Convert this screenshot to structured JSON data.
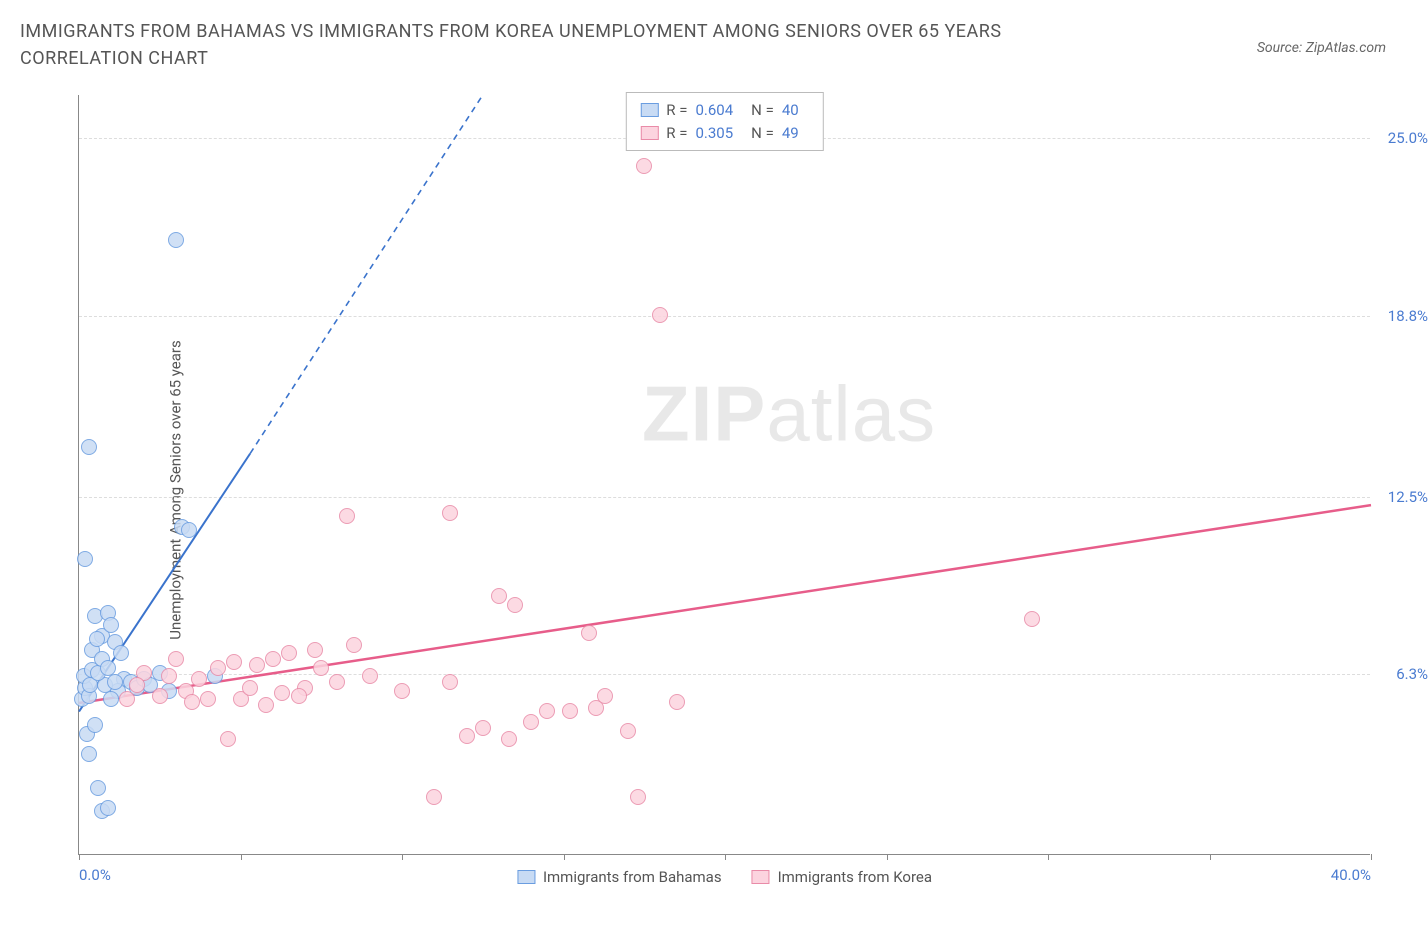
{
  "title": "IMMIGRANTS FROM BAHAMAS VS IMMIGRANTS FROM KOREA UNEMPLOYMENT AMONG SENIORS OVER 65 YEARS CORRELATION CHART",
  "source": "Source: ZipAtlas.com",
  "ylabel": "Unemployment Among Seniors over 65 years",
  "watermark_bold": "ZIP",
  "watermark_light": "atlas",
  "chart": {
    "type": "scatter",
    "xlim": [
      0,
      40
    ],
    "ylim": [
      0,
      26.5
    ],
    "x_ticks": [
      0,
      5,
      10,
      15,
      20,
      25,
      30,
      35,
      40
    ],
    "x_tick_labels": {
      "0": "0.0%",
      "40": "40.0%"
    },
    "y_gridlines": [
      6.3,
      12.5,
      18.8,
      25.0
    ],
    "y_tick_labels": [
      "6.3%",
      "12.5%",
      "18.8%",
      "25.0%"
    ],
    "background_color": "#ffffff",
    "grid_color": "#dddddd",
    "axis_color": "#888888",
    "tick_label_color": "#4a7bd0",
    "point_radius": 8,
    "point_stroke_width": 1.2,
    "series": [
      {
        "name": "Immigrants from Bahamas",
        "fill": "#c8dbf4",
        "stroke": "#6a9de0",
        "R": "0.604",
        "N": "40",
        "trend": {
          "x1": 0,
          "y1": 5.0,
          "x2": 5.3,
          "y2": 14.0,
          "dash_x2": 12.5,
          "dash_y2": 26.5,
          "color": "#3a73cc",
          "width": 2
        },
        "points": [
          [
            0.1,
            5.4
          ],
          [
            0.2,
            5.8
          ],
          [
            0.15,
            6.2
          ],
          [
            0.3,
            5.5
          ],
          [
            0.35,
            5.9
          ],
          [
            0.4,
            6.4
          ],
          [
            0.25,
            4.2
          ],
          [
            0.5,
            4.5
          ],
          [
            0.3,
            3.5
          ],
          [
            0.6,
            2.3
          ],
          [
            0.7,
            1.5
          ],
          [
            0.9,
            1.6
          ],
          [
            0.2,
            10.3
          ],
          [
            0.5,
            8.3
          ],
          [
            0.7,
            7.6
          ],
          [
            0.9,
            8.4
          ],
          [
            1.0,
            8.0
          ],
          [
            1.1,
            7.4
          ],
          [
            1.3,
            7.0
          ],
          [
            1.4,
            6.1
          ],
          [
            1.2,
            5.7
          ],
          [
            1.0,
            5.4
          ],
          [
            0.8,
            5.9
          ],
          [
            0.6,
            6.3
          ],
          [
            1.6,
            6.0
          ],
          [
            1.8,
            5.8
          ],
          [
            2.0,
            6.1
          ],
          [
            2.2,
            5.9
          ],
          [
            2.5,
            6.3
          ],
          [
            2.8,
            5.7
          ],
          [
            4.2,
            6.2
          ],
          [
            3.2,
            11.4
          ],
          [
            3.4,
            11.3
          ],
          [
            3.0,
            21.4
          ],
          [
            0.3,
            14.2
          ],
          [
            0.4,
            7.1
          ],
          [
            0.55,
            7.5
          ],
          [
            0.7,
            6.8
          ],
          [
            0.9,
            6.5
          ],
          [
            1.1,
            6.0
          ]
        ]
      },
      {
        "name": "Immigrants from Korea",
        "fill": "#fcd4df",
        "stroke": "#e98ba8",
        "R": "0.305",
        "N": "49",
        "trend": {
          "x1": 0,
          "y1": 5.3,
          "x2": 40,
          "y2": 12.2,
          "color": "#e75d8a",
          "width": 2.5
        },
        "points": [
          [
            1.5,
            5.4
          ],
          [
            2.0,
            6.3
          ],
          [
            2.5,
            5.5
          ],
          [
            3.0,
            6.8
          ],
          [
            3.3,
            5.7
          ],
          [
            3.7,
            6.1
          ],
          [
            4.0,
            5.4
          ],
          [
            4.3,
            6.5
          ],
          [
            4.6,
            4.0
          ],
          [
            5.0,
            5.4
          ],
          [
            5.5,
            6.6
          ],
          [
            5.8,
            5.2
          ],
          [
            6.0,
            6.8
          ],
          [
            6.3,
            5.6
          ],
          [
            6.5,
            7.0
          ],
          [
            7.0,
            5.8
          ],
          [
            7.5,
            6.5
          ],
          [
            8.0,
            6.0
          ],
          [
            8.3,
            11.8
          ],
          [
            8.5,
            7.3
          ],
          [
            11.0,
            2.0
          ],
          [
            11.5,
            11.9
          ],
          [
            12.0,
            4.1
          ],
          [
            12.5,
            4.4
          ],
          [
            13.0,
            9.0
          ],
          [
            13.3,
            4.0
          ],
          [
            13.5,
            8.7
          ],
          [
            14.0,
            4.6
          ],
          [
            14.5,
            5.0
          ],
          [
            15.2,
            5.0
          ],
          [
            15.8,
            7.7
          ],
          [
            16.0,
            5.1
          ],
          [
            16.3,
            5.5
          ],
          [
            17.0,
            4.3
          ],
          [
            17.3,
            2.0
          ],
          [
            17.5,
            24.0
          ],
          [
            18.0,
            18.8
          ],
          [
            18.5,
            5.3
          ],
          [
            29.5,
            8.2
          ],
          [
            2.8,
            6.2
          ],
          [
            3.5,
            5.3
          ],
          [
            4.8,
            6.7
          ],
          [
            5.3,
            5.8
          ],
          [
            6.8,
            5.5
          ],
          [
            7.3,
            7.1
          ],
          [
            9.0,
            6.2
          ],
          [
            10.0,
            5.7
          ],
          [
            11.5,
            6.0
          ],
          [
            1.8,
            5.9
          ]
        ]
      }
    ]
  },
  "legend_bottom": [
    {
      "label": "Immigrants from Bahamas",
      "fill": "#c8dbf4",
      "stroke": "#6a9de0"
    },
    {
      "label": "Immigrants from Korea",
      "fill": "#fcd4df",
      "stroke": "#e98ba8"
    }
  ]
}
